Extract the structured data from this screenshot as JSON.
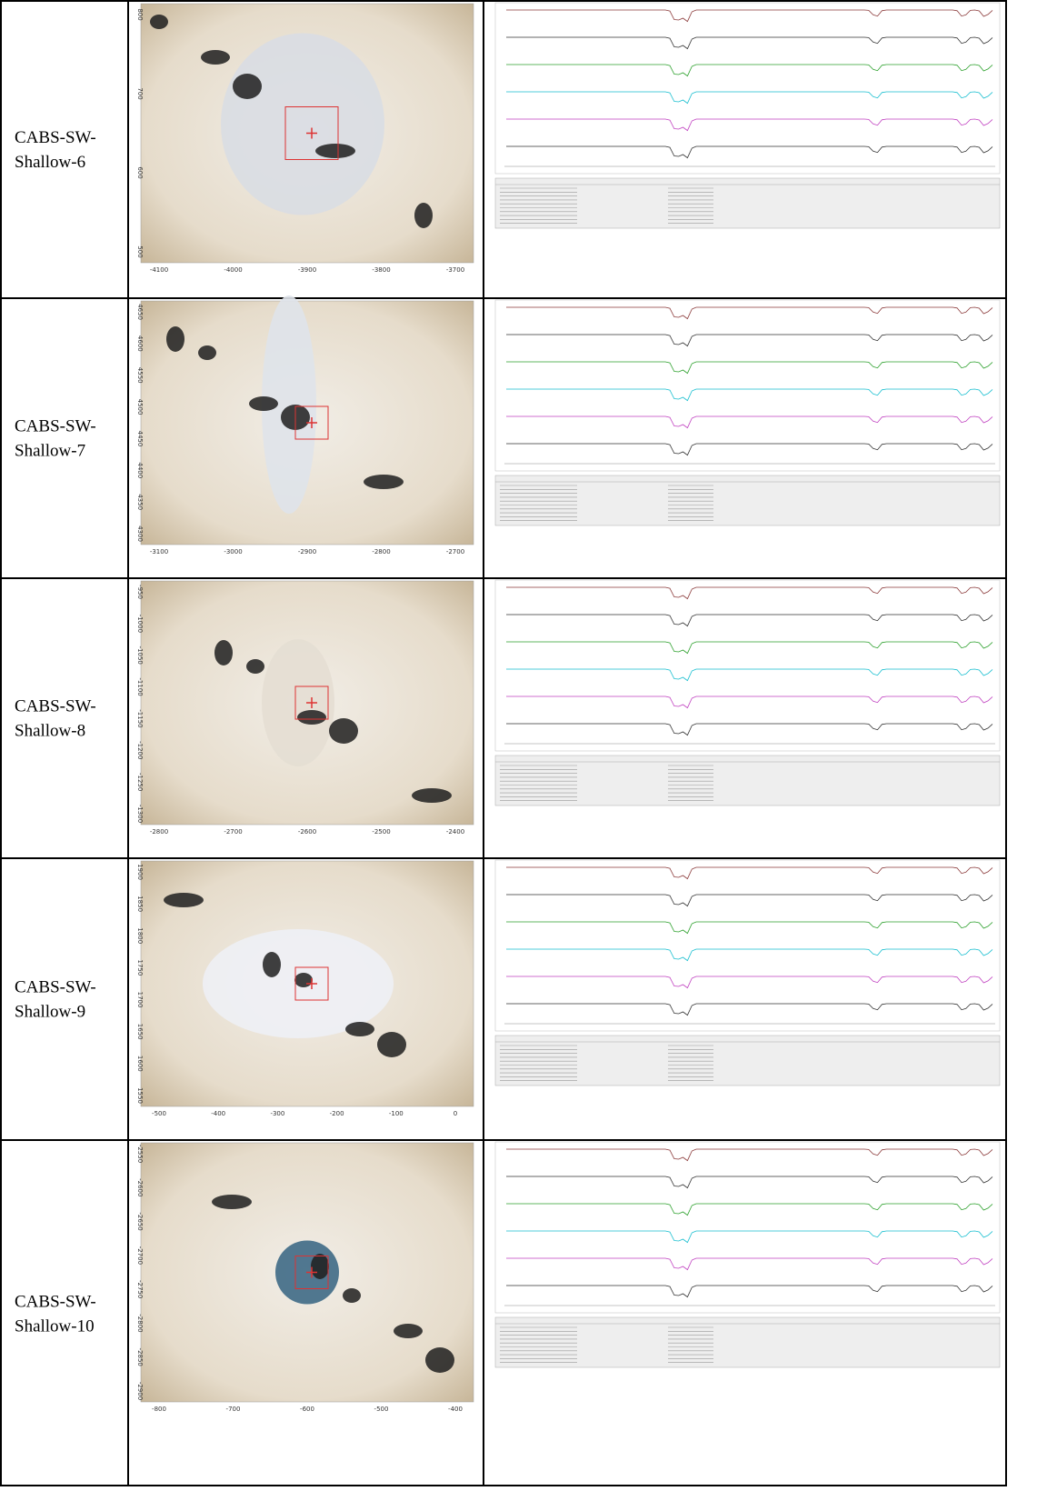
{
  "rows": [
    {
      "sample": [
        "CABS-SW-",
        "Shallow-6"
      ],
      "image": {
        "xticks": [
          -4100,
          -4000,
          -3900,
          -3800,
          -3700
        ],
        "yticks": [
          800,
          700,
          600,
          500
        ]
      }
    },
    {
      "sample": [
        "CABS-SW-",
        "Shallow-7"
      ],
      "image": {
        "xticks": [
          -3100,
          -3000,
          -2900,
          -2800,
          -2700
        ],
        "yticks": [
          4650,
          4600,
          4550,
          4500,
          4450,
          4400,
          4350,
          4300
        ]
      }
    },
    {
      "sample": [
        "CABS-SW-",
        "Shallow-8"
      ],
      "image": {
        "xticks": [
          -2800,
          -2700,
          -2600,
          -2500,
          -2400
        ],
        "yticks": [
          -950,
          -1000,
          -1050,
          -1100,
          -1150,
          -1200,
          -1250,
          -1300
        ]
      }
    },
    {
      "sample": [
        "CABS-SW-",
        "Shallow-9"
      ],
      "image": {
        "xticks": [
          -500,
          -400,
          -300,
          -200,
          -100,
          0
        ],
        "yticks": [
          1900,
          1850,
          1800,
          1750,
          1700,
          1650,
          1600,
          1550
        ]
      }
    },
    {
      "sample": [
        "CABS-SW-",
        "Shallow-10"
      ],
      "image": {
        "xticks": [
          -800,
          -700,
          -600,
          -500,
          -400
        ],
        "yticks": [
          -2550,
          -2600,
          -2650,
          -2700,
          -2750,
          -2800,
          -2850,
          -2900
        ]
      }
    }
  ]
}
